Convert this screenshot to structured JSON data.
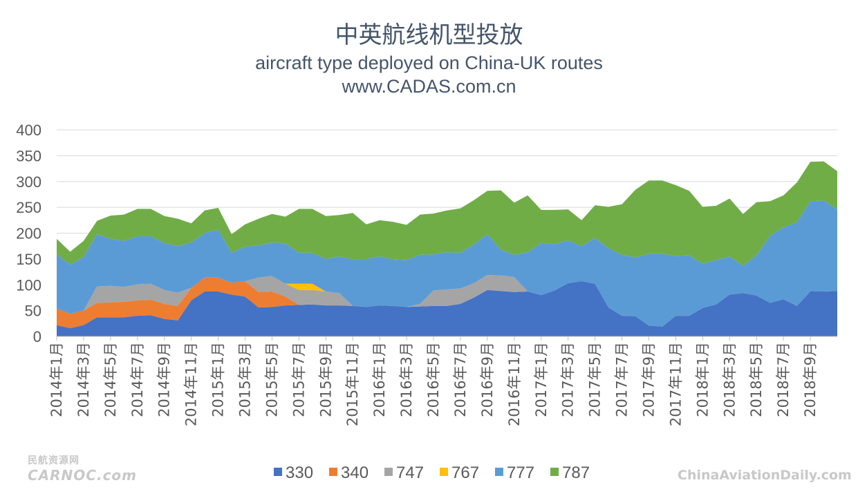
{
  "title": "中英航线机型投放",
  "subtitle": "aircraft type deployed on China-UK routes",
  "source": "www.CADAS.com.cn",
  "watermark_left_cn": "民航资源网",
  "watermark_left_en": "CARNOC.com",
  "watermark_right": "ChinaAviationDaily.com",
  "chart_data": {
    "type": "area",
    "stacked": true,
    "title": "中英航线机型投放",
    "subtitle": "aircraft type deployed on China-UK routes",
    "ylim": [
      0,
      400
    ],
    "yticks": [
      0,
      50,
      100,
      150,
      200,
      250,
      300,
      350,
      400
    ],
    "grid": true,
    "legend_position": "bottom",
    "x_tick_labels": [
      "2014年1月",
      "2014年3月",
      "2014年5月",
      "2014年7月",
      "2014年9月",
      "2014年11月",
      "2015年1月",
      "2015年3月",
      "2015年5月",
      "2015年7月",
      "2015年9月",
      "2015年11月",
      "2016年1月",
      "2016年3月",
      "2016年5月",
      "2016年7月",
      "2016年9月",
      "2016年11月",
      "2017年1月",
      "2017年3月",
      "2017年5月",
      "2017年7月",
      "2017年9月",
      "2017年11月",
      "2018年1月",
      "2018年3月",
      "2018年5月",
      "2018年7月",
      "2018年9月"
    ],
    "series": [
      {
        "name": "330",
        "color": "#4472c4",
        "values": [
          22,
          16,
          22,
          37,
          37,
          37,
          40,
          41,
          34,
          31,
          70,
          87,
          87,
          81,
          77,
          56,
          57,
          60,
          61,
          62,
          60,
          60,
          59,
          57,
          60,
          59,
          57,
          58,
          59,
          59,
          63,
          75,
          90,
          88,
          86,
          87,
          80,
          89,
          103,
          107,
          102,
          56,
          40,
          39,
          21,
          19,
          40,
          40,
          55,
          62,
          81,
          84,
          79,
          65,
          72,
          59,
          87,
          87,
          88
        ]
      },
      {
        "name": "340",
        "color": "#ed7d31",
        "values": [
          32,
          28,
          28,
          28,
          29,
          30,
          30,
          30,
          29,
          28,
          24,
          27,
          27,
          23,
          30,
          30,
          30,
          17,
          0,
          0,
          0,
          0,
          0,
          0,
          0,
          0,
          0,
          0,
          0,
          0,
          0,
          0,
          0,
          0,
          0,
          0,
          0,
          0,
          0,
          0,
          0,
          0,
          0,
          0,
          0,
          0,
          0,
          0,
          0,
          0,
          0,
          0,
          0,
          0,
          0,
          0,
          0,
          0,
          0
        ]
      },
      {
        "name": "747",
        "color": "#a5a5a5",
        "values": [
          0,
          0,
          0,
          32,
          32,
          29,
          31,
          31,
          27,
          26,
          0,
          0,
          0,
          0,
          0,
          28,
          30,
          25,
          29,
          28,
          27,
          24,
          0,
          0,
          0,
          0,
          0,
          5,
          30,
          32,
          30,
          28,
          29,
          30,
          29,
          0,
          0,
          0,
          0,
          0,
          0,
          0,
          0,
          0,
          0,
          0,
          0,
          0,
          0,
          0,
          0,
          0,
          0,
          0,
          0,
          0,
          0,
          0,
          0
        ]
      },
      {
        "name": "767",
        "color": "#ffc000",
        "values": [
          0,
          0,
          0,
          0,
          0,
          0,
          0,
          0,
          0,
          0,
          0,
          0,
          0,
          0,
          0,
          0,
          0,
          0,
          12,
          12,
          0,
          0,
          0,
          0,
          0,
          0,
          0,
          0,
          0,
          0,
          0,
          0,
          0,
          0,
          0,
          0,
          0,
          0,
          0,
          0,
          0,
          0,
          0,
          0,
          0,
          0,
          0,
          0,
          0,
          0,
          0,
          0,
          0,
          0,
          0,
          0,
          0,
          0,
          0
        ]
      },
      {
        "name": "777",
        "color": "#5b9bd5",
        "values": [
          105,
          95,
          104,
          101,
          91,
          89,
          93,
          92,
          91,
          90,
          88,
          86,
          93,
          58,
          67,
          62,
          65,
          78,
          60,
          60,
          63,
          71,
          90,
          93,
          95,
          90,
          91,
          95,
          70,
          72,
          69,
          75,
          79,
          50,
          43,
          76,
          101,
          90,
          83,
          68,
          89,
          115,
          118,
          114,
          139,
          141,
          116,
          117,
          86,
          86,
          74,
          53,
          78,
          130,
          139,
          162,
          175,
          176,
          158
        ]
      },
      {
        "name": "787",
        "color": "#70ad47",
        "values": [
          30,
          25,
          31,
          26,
          45,
          51,
          53,
          53,
          52,
          53,
          37,
          44,
          42,
          36,
          43,
          52,
          55,
          52,
          85,
          85,
          83,
          80,
          90,
          67,
          70,
          73,
          68,
          78,
          79,
          81,
          86,
          86,
          84,
          115,
          101,
          110,
          64,
          66,
          60,
          50,
          63,
          80,
          98,
          131,
          142,
          142,
          137,
          125,
          110,
          105,
          112,
          100,
          103,
          67,
          62,
          77,
          76,
          76,
          74
        ]
      }
    ]
  }
}
